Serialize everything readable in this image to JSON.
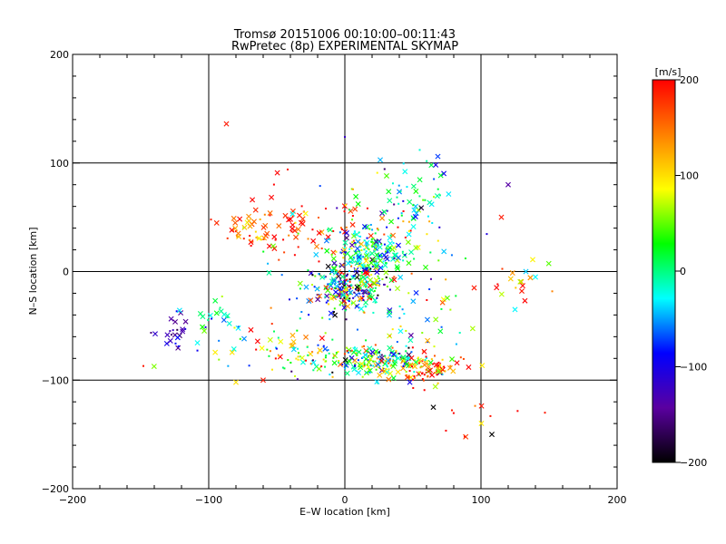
{
  "chart_data": {
    "type": "scatter",
    "title": "Tromsø 20151006 00:10:00–00:11:43",
    "subtitle": "RwPretec (8p) EXPERIMENTAL SKYMAP",
    "xlabel": "E–W location [km]",
    "ylabel": "N–S location [km]",
    "xlim": [
      -200,
      200
    ],
    "ylim": [
      -200,
      200
    ],
    "x_ticks": [
      -200,
      -100,
      0,
      100,
      200
    ],
    "y_ticks": [
      -200,
      -100,
      0,
      100,
      200
    ],
    "grid_lines": [
      -100,
      0,
      100
    ],
    "colorbar": {
      "label": "[m/s]",
      "range": [
        -200,
        200
      ],
      "ticks": [
        200,
        100,
        0,
        -100,
        -200
      ],
      "colormap": [
        "#000000",
        "#5a00a0",
        "#0000ff",
        "#00ffff",
        "#00ff00",
        "#ffff00",
        "#ff8000",
        "#ff0000"
      ]
    },
    "markers": {
      "large": "cross",
      "small": "dot"
    },
    "clusters": [
      {
        "cx": -35,
        "cy": 40,
        "sx": 28,
        "sy": 12,
        "n": 70,
        "vmean": 190,
        "vsd": 25,
        "crossfrac": 0.6
      },
      {
        "cx": -70,
        "cy": 42,
        "sx": 10,
        "sy": 8,
        "n": 25,
        "vmean": 120,
        "vsd": 40,
        "crossfrac": 0.6
      },
      {
        "cx": 0,
        "cy": -15,
        "sx": 16,
        "sy": 12,
        "n": 260,
        "vmean": -20,
        "vsd": 110,
        "crossfrac": 0.35
      },
      {
        "cx": 20,
        "cy": 15,
        "sx": 14,
        "sy": 11,
        "n": 170,
        "vmean": -10,
        "vsd": 60,
        "crossfrac": 0.35
      },
      {
        "cx": 20,
        "cy": -82,
        "sx": 25,
        "sy": 8,
        "n": 220,
        "vmean": 20,
        "vsd": 90,
        "crossfrac": 0.35
      },
      {
        "cx": 60,
        "cy": -90,
        "sx": 12,
        "sy": 6,
        "n": 70,
        "vmean": 160,
        "vsd": 80,
        "crossfrac": 0.35
      },
      {
        "cx": -125,
        "cy": -55,
        "sx": 12,
        "sy": 10,
        "n": 25,
        "vmean": -130,
        "vsd": 30,
        "crossfrac": 0.6
      },
      {
        "cx": -100,
        "cy": -45,
        "sx": 10,
        "sy": 12,
        "n": 20,
        "vmean": -20,
        "vsd": 30,
        "crossfrac": 0.6
      },
      {
        "cx": -50,
        "cy": -70,
        "sx": 30,
        "sy": 15,
        "n": 60,
        "vmean": 60,
        "vsd": 120,
        "crossfrac": 0.35
      },
      {
        "cx": 55,
        "cy": 70,
        "sx": 12,
        "sy": 15,
        "n": 40,
        "vmean": -20,
        "vsd": 40,
        "crossfrac": 0.4
      },
      {
        "cx": 40,
        "cy": 40,
        "sx": 30,
        "sy": 25,
        "n": 60,
        "vmean": 30,
        "vsd": 110,
        "crossfrac": 0.35
      },
      {
        "cx": 55,
        "cy": -40,
        "sx": 25,
        "sy": 30,
        "n": 40,
        "vmean": 40,
        "vsd": 110,
        "crossfrac": 0.35
      },
      {
        "cx": 125,
        "cy": -10,
        "sx": 10,
        "sy": 10,
        "n": 15,
        "vmean": 150,
        "vsd": 60,
        "crossfrac": 0.6
      },
      {
        "cx": 0,
        "cy": 30,
        "sx": 40,
        "sy": 40,
        "n": 40,
        "vmean": 20,
        "vsd": 130,
        "crossfrac": 0.35
      },
      {
        "cx": 90,
        "cy": -120,
        "sx": 15,
        "sy": 15,
        "n": 12,
        "vmean": 170,
        "vsd": 40,
        "crossfrac": 0.3
      }
    ],
    "points": [
      {
        "x": -87,
        "y": 136,
        "v": 190,
        "m": "x"
      },
      {
        "x": 0,
        "y": 124,
        "v": -120,
        "m": "d"
      },
      {
        "x": 120,
        "y": 80,
        "v": -140,
        "m": "x"
      },
      {
        "x": 115,
        "y": 50,
        "v": 190,
        "m": "x"
      },
      {
        "x": 108,
        "y": -150,
        "v": -200,
        "m": "x"
      },
      {
        "x": 147,
        "y": -130,
        "v": 190,
        "m": "d"
      },
      {
        "x": 88,
        "y": -152,
        "v": 190,
        "m": "d"
      },
      {
        "x": -148,
        "y": -87,
        "v": 190,
        "m": "d"
      },
      {
        "x": 140,
        "y": -5,
        "v": -30,
        "m": "x"
      },
      {
        "x": 133,
        "y": 0,
        "v": -40,
        "m": "x"
      },
      {
        "x": 130,
        "y": -18,
        "v": 190,
        "m": "x"
      },
      {
        "x": 138,
        "y": 11,
        "v": 90,
        "m": "x"
      },
      {
        "x": 95,
        "y": -15,
        "v": 190,
        "m": "x"
      },
      {
        "x": 125,
        "y": -35,
        "v": -30,
        "m": "x"
      },
      {
        "x": 55,
        "y": 112,
        "v": -20,
        "m": "d"
      },
      {
        "x": -42,
        "y": 94,
        "v": 190,
        "m": "d"
      },
      {
        "x": -60,
        "y": -100,
        "v": 190,
        "m": "x"
      },
      {
        "x": -80,
        "y": -102,
        "v": 100,
        "m": "x"
      },
      {
        "x": 65,
        "y": -125,
        "v": -200,
        "m": "x"
      }
    ]
  }
}
